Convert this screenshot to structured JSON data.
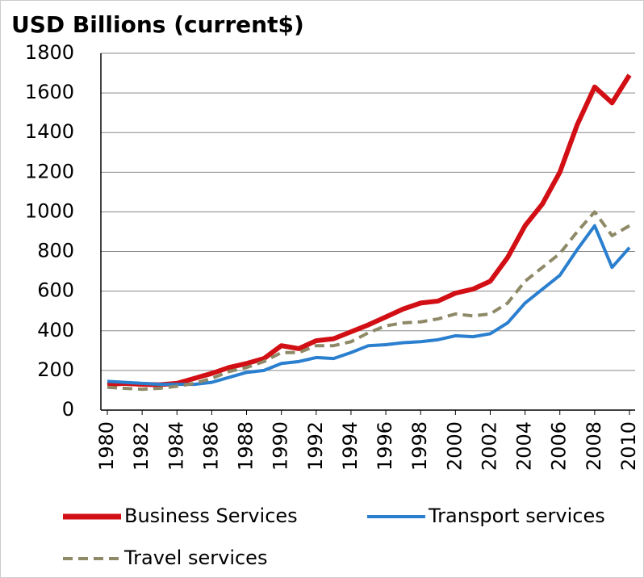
{
  "chart_data": {
    "type": "line",
    "title": "USD Billions (current$)",
    "x": [
      1980,
      1981,
      1982,
      1983,
      1984,
      1985,
      1986,
      1987,
      1988,
      1989,
      1990,
      1991,
      1992,
      1993,
      1994,
      1995,
      1996,
      1997,
      1998,
      1999,
      2000,
      2001,
      2002,
      2003,
      2004,
      2005,
      2006,
      2007,
      2008,
      2009,
      2010
    ],
    "xlim": [
      1980,
      2010
    ],
    "xticks": [
      1980,
      1982,
      1984,
      1986,
      1988,
      1990,
      1992,
      1994,
      1996,
      1998,
      2000,
      2002,
      2004,
      2006,
      2008,
      2010
    ],
    "ylim": [
      0,
      1800
    ],
    "yticks": [
      0,
      200,
      400,
      600,
      800,
      1000,
      1200,
      1400,
      1600,
      1800
    ],
    "grid": true,
    "series": [
      {
        "name": "Business Services",
        "color": "#d10f14",
        "style": "solid",
        "values": [
          130,
          135,
          130,
          128,
          135,
          160,
          185,
          215,
          235,
          260,
          325,
          310,
          350,
          360,
          395,
          430,
          470,
          510,
          540,
          550,
          590,
          610,
          650,
          770,
          930,
          1040,
          1200,
          1440,
          1630,
          1550,
          1690
        ]
      },
      {
        "name": "Transport services",
        "color": "#2a7fcf",
        "style": "solid",
        "values": [
          145,
          140,
          135,
          130,
          130,
          130,
          140,
          165,
          190,
          200,
          235,
          245,
          265,
          260,
          290,
          325,
          330,
          340,
          345,
          355,
          375,
          370,
          385,
          440,
          540,
          610,
          680,
          810,
          930,
          720,
          820
        ]
      },
      {
        "name": "Travel services",
        "color": "#8e8a68",
        "style": "dashed",
        "values": [
          115,
          110,
          105,
          110,
          120,
          135,
          160,
          195,
          215,
          245,
          290,
          290,
          325,
          325,
          345,
          390,
          425,
          440,
          445,
          460,
          485,
          475,
          485,
          540,
          650,
          720,
          790,
          900,
          1000,
          880,
          930
        ]
      }
    ]
  }
}
